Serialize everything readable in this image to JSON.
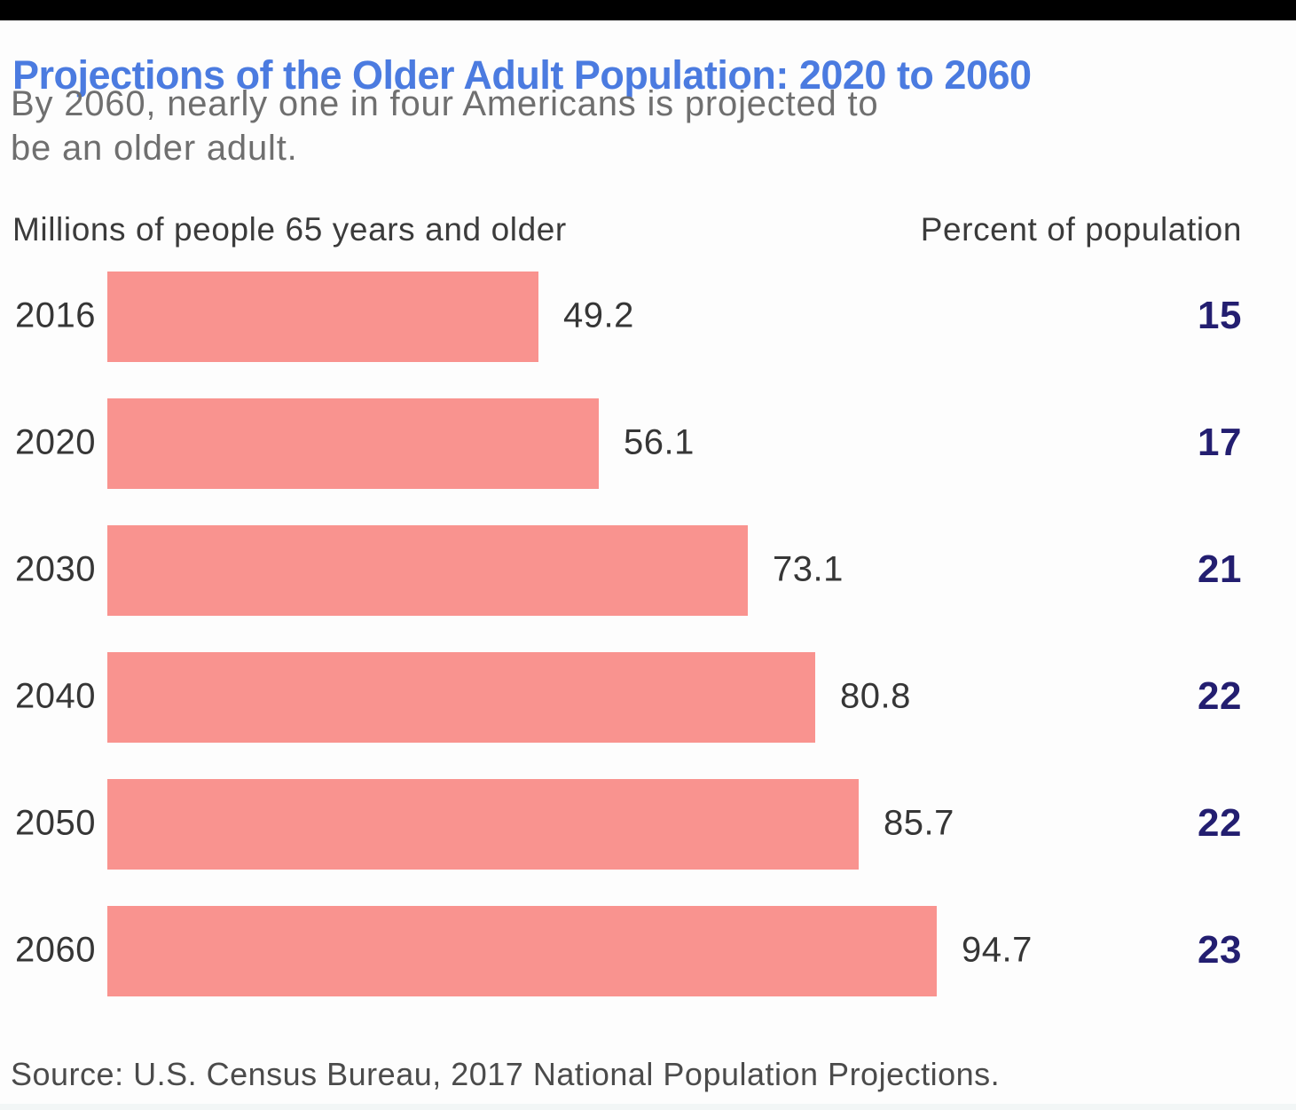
{
  "window": {
    "top_bar_color": "#000000",
    "background_color": "#FDFDFD"
  },
  "header": {
    "title": "Projections of the Older Adult Population: 2020 to 2060",
    "subtitle_lines": [
      "By 2060, nearly one in four Americans is projected to",
      "be an older adult."
    ]
  },
  "chart_data": {
    "type": "bar",
    "orientation": "horizontal",
    "title": "Projections of the Older Adult Population: 2020 to 2060",
    "subtitle": "By 2060, nearly one in four Americans is projected to be an older adult.",
    "left_column_header": "Millions of people 65 years and older",
    "right_column_header": "Percent of population",
    "categories": [
      "2016",
      "2020",
      "2030",
      "2040",
      "2050",
      "2060"
    ],
    "series": [
      {
        "name": "Millions of people 65 years and older",
        "values": [
          49.2,
          56.1,
          73.1,
          80.8,
          85.7,
          94.7
        ]
      },
      {
        "name": "Percent of population",
        "values": [
          15,
          17,
          21,
          22,
          22,
          23
        ]
      }
    ],
    "rows": [
      {
        "year": "2016",
        "millions": "49.2",
        "percent": "15"
      },
      {
        "year": "2020",
        "millions": "56.1",
        "percent": "17"
      },
      {
        "year": "2030",
        "millions": "73.1",
        "percent": "21"
      },
      {
        "year": "2040",
        "millions": "80.8",
        "percent": "22"
      },
      {
        "year": "2050",
        "millions": "85.7",
        "percent": "22"
      },
      {
        "year": "2060",
        "millions": "94.7",
        "percent": "23"
      }
    ],
    "value_range": [
      0,
      100
    ],
    "grid": false,
    "legend": false,
    "bar_color": "#F9938F",
    "data_label_position": "right-of-bar"
  },
  "colors": {
    "title_blue": "#4B7BE0",
    "subtitle_gray": "#6F6F6F",
    "bar_salmon": "#F9938F",
    "percent_navy": "#231E70",
    "label_dark": "#363636",
    "source_gray": "#4B4B4B"
  },
  "source": "Source: U.S. Census Bureau, 2017 National Population Projections."
}
